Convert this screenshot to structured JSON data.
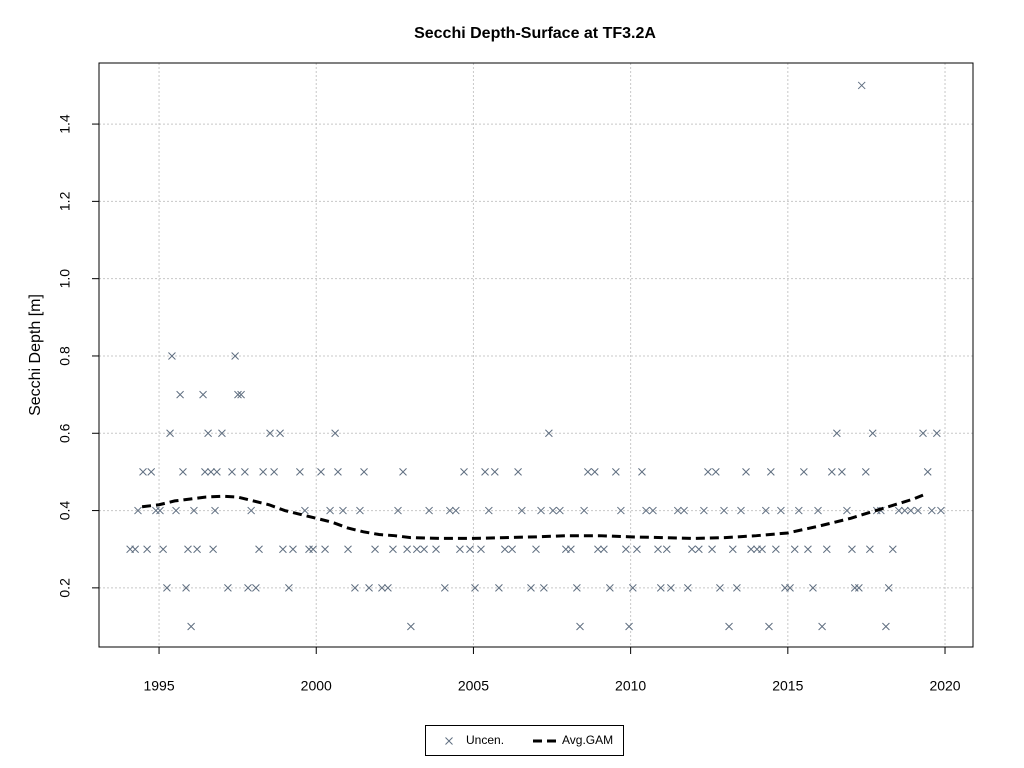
{
  "chart_data": {
    "type": "scatter",
    "title": "Secchi Depth-Surface at TF3.2A",
    "y_label": "Secchi Depth [m]",
    "xlim": [
      1993.09,
      2020.89
    ],
    "ylim": [
      0.047,
      1.558
    ],
    "xticks": [
      1995,
      2000,
      2005,
      2010,
      2015,
      2020
    ],
    "yticks": [
      0.2,
      0.4,
      0.6,
      0.8,
      {
        "value": 1,
        "label": "1.0"
      },
      1.2,
      1.4
    ],
    "grid": true,
    "legend": "bottom",
    "series": [
      {
        "name": "Uncen.",
        "color": "#5f6e80",
        "marker": "x",
        "x": [
          1994.08,
          1994.24,
          1994.33,
          1994.49,
          1994.62,
          1994.75,
          1994.9,
          1995.03,
          1995.13,
          1995.25,
          1995.35,
          1995.41,
          1995.54,
          1995.67,
          1995.76,
          1995.86,
          1995.92,
          1996.02,
          1996.11,
          1996.21,
          1996.4,
          1996.46,
          1996.56,
          1996.65,
          1996.72,
          1996.78,
          1996.84,
          1997.0,
          1997.19,
          1997.32,
          1997.42,
          1997.51,
          1997.61,
          1997.73,
          1997.83,
          1997.93,
          1998.08,
          1998.18,
          1998.31,
          1998.53,
          1998.66,
          1998.85,
          1998.94,
          1999.13,
          1999.26,
          1999.48,
          1999.64,
          1999.77,
          1999.9,
          2000.15,
          2000.28,
          2000.44,
          2000.6,
          2000.69,
          2000.85,
          2001.01,
          2001.23,
          2001.39,
          2001.52,
          2001.68,
          2001.87,
          2002.09,
          2002.28,
          2002.44,
          2002.6,
          2002.76,
          2002.89,
          2003.01,
          2003.2,
          2003.43,
          2003.59,
          2003.81,
          2004.09,
          2004.25,
          2004.44,
          2004.57,
          2004.7,
          2004.89,
          2005.05,
          2005.24,
          2005.37,
          2005.49,
          2005.68,
          2005.81,
          2006.0,
          2006.23,
          2006.42,
          2006.54,
          2006.83,
          2006.99,
          2007.15,
          2007.24,
          2007.4,
          2007.53,
          2007.75,
          2007.94,
          2008.1,
          2008.29,
          2008.39,
          2008.52,
          2008.64,
          2008.86,
          2008.96,
          2009.15,
          2009.34,
          2009.53,
          2009.69,
          2009.85,
          2009.95,
          2010.07,
          2010.2,
          2010.36,
          2010.49,
          2010.71,
          2010.87,
          2010.96,
          2011.15,
          2011.28,
          2011.5,
          2011.7,
          2011.82,
          2011.95,
          2012.17,
          2012.33,
          2012.46,
          2012.59,
          2012.71,
          2012.84,
          2012.97,
          2013.13,
          2013.25,
          2013.38,
          2013.51,
          2013.67,
          2013.83,
          2014.02,
          2014.18,
          2014.3,
          2014.4,
          2014.46,
          2014.62,
          2014.78,
          2014.91,
          2015.07,
          2015.22,
          2015.35,
          2015.51,
          2015.64,
          2015.8,
          2015.96,
          2016.09,
          2016.24,
          2016.4,
          2016.56,
          2016.72,
          2016.88,
          2017.04,
          2017.13,
          2017.26,
          2017.35,
          2017.48,
          2017.61,
          2017.7,
          2017.83,
          2017.96,
          2018.12,
          2018.21,
          2018.34,
          2018.53,
          2018.72,
          2018.91,
          2019.14,
          2019.3,
          2019.45,
          2019.58,
          2019.74,
          2019.87
        ],
        "values": [
          0.3,
          0.3,
          0.4,
          0.5,
          0.3,
          0.5,
          0.4,
          0.4,
          0.3,
          0.2,
          0.6,
          0.8,
          0.4,
          0.7,
          0.5,
          0.2,
          0.3,
          0.1,
          0.4,
          0.3,
          0.7,
          0.5,
          0.6,
          0.5,
          0.3,
          0.4,
          0.5,
          0.6,
          0.2,
          0.5,
          0.8,
          0.7,
          0.7,
          0.5,
          0.2,
          0.4,
          0.2,
          0.3,
          0.5,
          0.6,
          0.5,
          0.6,
          0.3,
          0.2,
          0.3,
          0.5,
          0.4,
          0.3,
          0.3,
          0.5,
          0.3,
          0.4,
          0.6,
          0.5,
          0.4,
          0.3,
          0.2,
          0.4,
          0.5,
          0.2,
          0.3,
          0.2,
          0.2,
          0.3,
          0.4,
          0.5,
          0.3,
          0.1,
          0.3,
          0.3,
          0.4,
          0.3,
          0.2,
          0.4,
          0.4,
          0.3,
          0.5,
          0.3,
          0.2,
          0.3,
          0.5,
          0.4,
          0.5,
          0.2,
          0.3,
          0.3,
          0.5,
          0.4,
          0.2,
          0.3,
          0.4,
          0.2,
          0.6,
          0.4,
          0.4,
          0.3,
          0.3,
          0.2,
          0.1,
          0.4,
          0.5,
          0.5,
          0.3,
          0.3,
          0.2,
          0.5,
          0.4,
          0.3,
          0.1,
          0.2,
          0.3,
          0.5,
          0.4,
          0.4,
          0.3,
          0.2,
          0.3,
          0.2,
          0.4,
          0.4,
          0.2,
          0.3,
          0.3,
          0.4,
          0.5,
          0.3,
          0.5,
          0.2,
          0.4,
          0.1,
          0.3,
          0.2,
          0.4,
          0.5,
          0.3,
          0.3,
          0.3,
          0.4,
          0.1,
          0.5,
          0.3,
          0.4,
          0.2,
          0.2,
          0.3,
          0.4,
          0.5,
          0.3,
          0.2,
          0.4,
          0.1,
          0.3,
          0.5,
          0.6,
          0.5,
          0.4,
          0.3,
          0.2,
          0.2,
          1.5,
          0.5,
          0.3,
          0.6,
          0.4,
          0.4,
          0.1,
          0.2,
          0.3,
          0.4,
          0.4,
          0.4,
          0.4,
          0.6,
          0.5,
          0.4,
          0.6,
          0.4
        ]
      },
      {
        "name": "Avg.GAM",
        "color": "#000000",
        "marker": "dashed-line",
        "x": [
          1994.46,
          1995,
          1995.5,
          1996,
          1996.5,
          1997,
          1997.5,
          1998,
          1998.5,
          1999,
          1999.5,
          2000,
          2000.5,
          2001,
          2001.5,
          2002,
          2002.5,
          2003,
          2004,
          2005,
          2006,
          2007,
          2008,
          2009,
          2010,
          2011,
          2012,
          2013,
          2014,
          2015,
          2016,
          2017,
          2018,
          2019,
          2019.3
        ],
        "values": [
          0.41,
          0.415,
          0.425,
          0.43,
          0.435,
          0.437,
          0.435,
          0.425,
          0.415,
          0.4,
          0.39,
          0.38,
          0.37,
          0.355,
          0.345,
          0.338,
          0.335,
          0.33,
          0.328,
          0.328,
          0.33,
          0.332,
          0.335,
          0.335,
          0.332,
          0.33,
          0.328,
          0.33,
          0.335,
          0.342,
          0.36,
          0.38,
          0.405,
          0.43,
          0.44
        ]
      }
    ]
  }
}
